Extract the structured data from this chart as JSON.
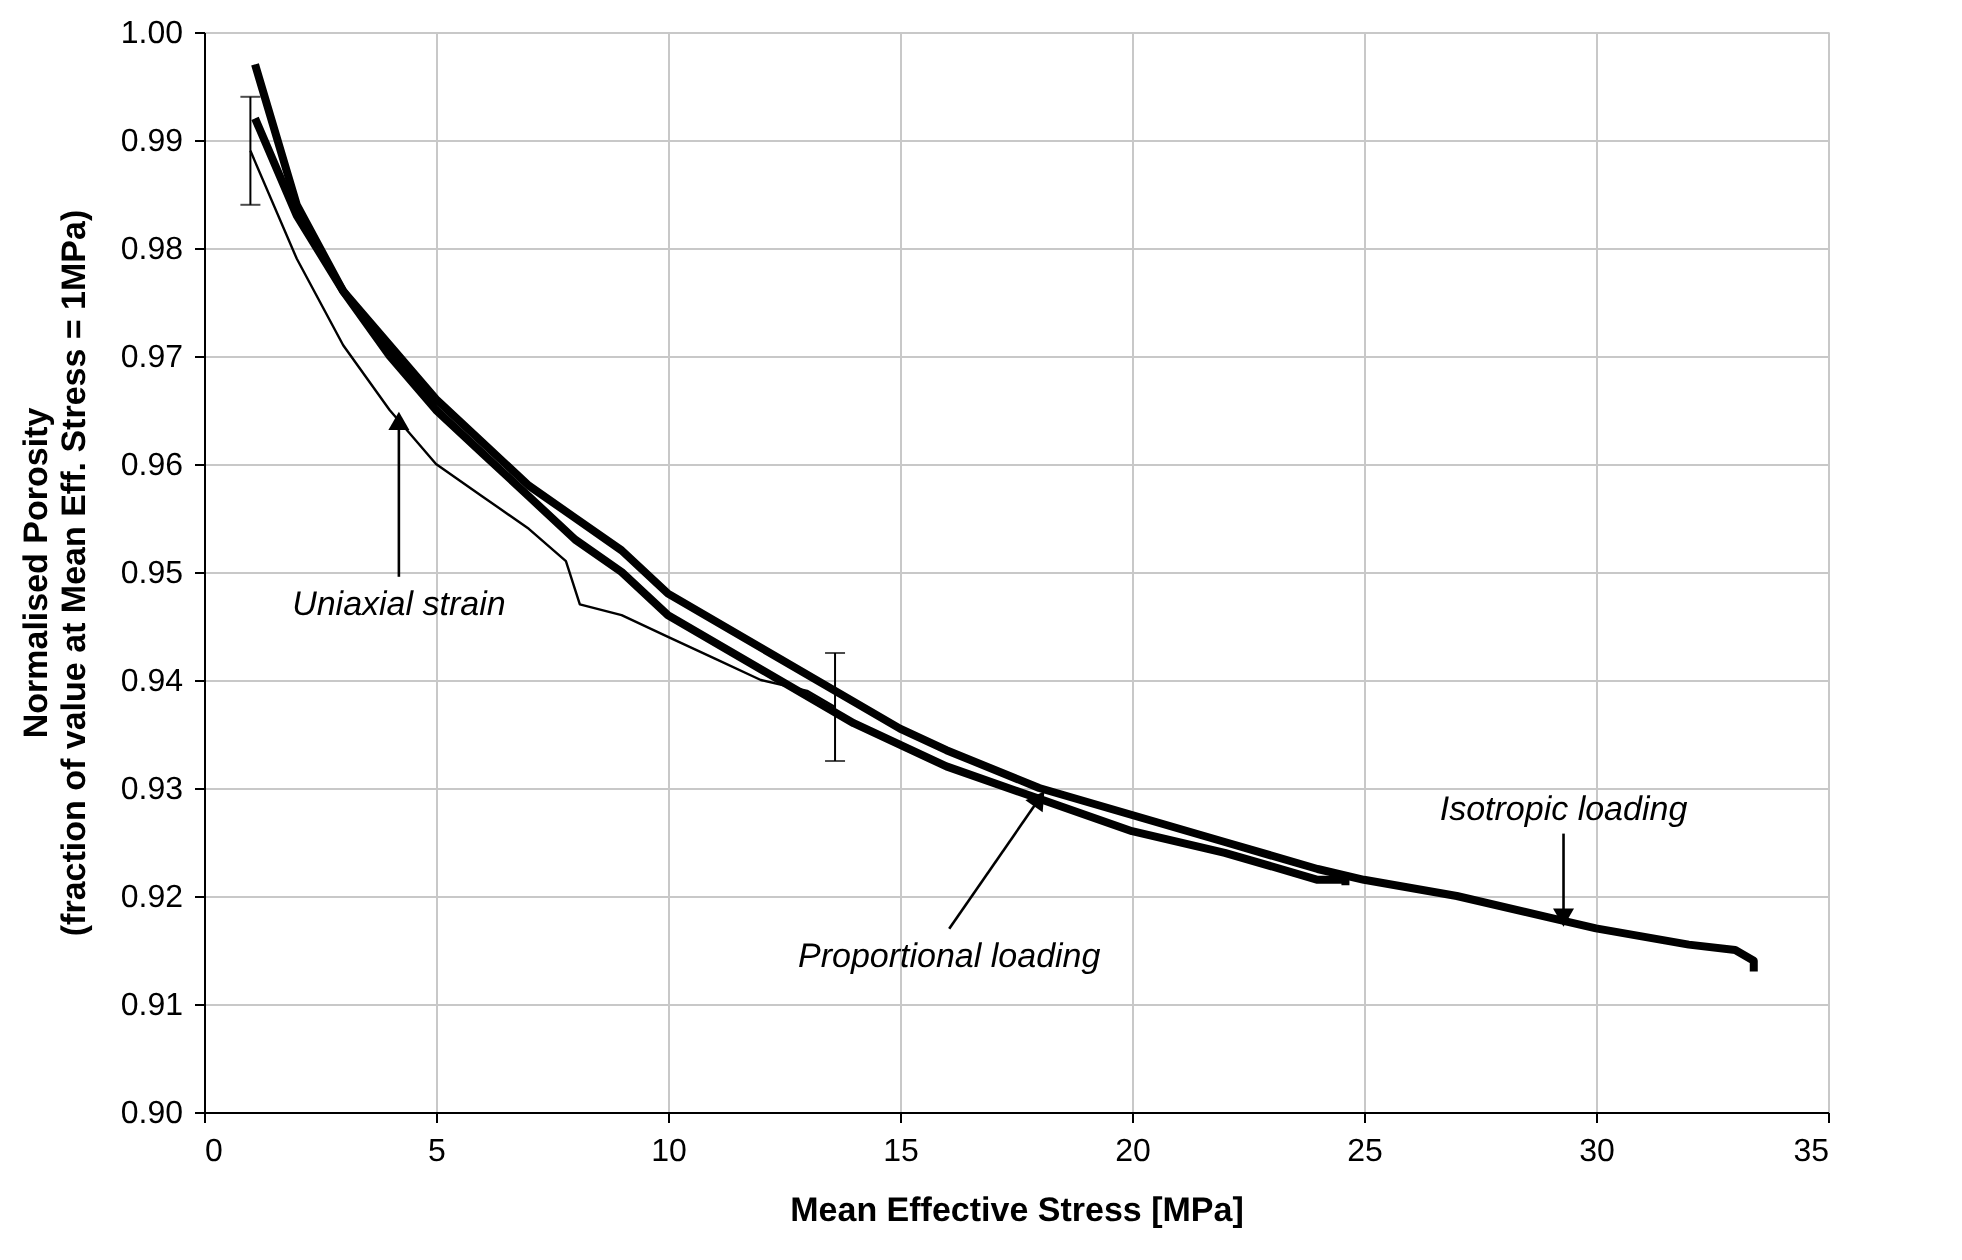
{
  "chart_data": {
    "type": "line",
    "xlabel": "Mean Effective Stress [MPa]",
    "ylabel": "Normalised Porosity\n(fraction of value at Mean Eff. Stress = 1MPa)",
    "xlim": [
      0,
      35
    ],
    "xticks": [
      0,
      5,
      10,
      15,
      20,
      25,
      30,
      35
    ],
    "ylim": [
      0.9,
      1.0
    ],
    "yticks": [
      {
        "value": 0.9,
        "label": "0.90"
      },
      0.91,
      0.92,
      0.93,
      0.94,
      0.95,
      0.96,
      0.97,
      0.98,
      0.99,
      {
        "value": 1.0,
        "label": "1.00"
      }
    ],
    "grid": true,
    "marker": "none",
    "line_style": "solid",
    "series": [
      {
        "color": "#000000",
        "x": [
          1.1,
          2,
          3,
          4,
          5,
          6,
          7,
          8,
          9,
          10,
          12,
          14,
          15,
          16,
          18,
          20,
          22,
          24,
          25,
          27,
          29,
          30,
          32,
          33,
          33.4,
          33.4
        ],
        "values": [
          0.997,
          0.984,
          0.976,
          0.971,
          0.966,
          0.962,
          0.958,
          0.955,
          0.952,
          0.948,
          0.943,
          0.938,
          0.9355,
          0.9335,
          0.93,
          0.9275,
          0.925,
          0.9225,
          0.9215,
          0.92,
          0.918,
          0.917,
          0.9155,
          0.915,
          0.914,
          0.913
        ]
      },
      {
        "color": "#000000",
        "x": [
          1.1,
          2,
          3,
          4,
          5,
          6,
          7,
          8,
          9,
          10,
          12,
          14,
          16,
          18,
          20,
          22,
          24,
          24.6,
          24.6
        ],
        "values": [
          0.992,
          0.983,
          0.976,
          0.97,
          0.965,
          0.961,
          0.957,
          0.953,
          0.95,
          0.946,
          0.941,
          0.936,
          0.932,
          0.929,
          0.926,
          0.924,
          0.9215,
          0.9215,
          0.921
        ]
      },
      {
        "color": "#000000",
        "x": [
          1.0,
          2,
          3,
          4,
          5,
          6,
          7,
          7.8,
          8.1,
          9,
          10,
          11,
          12,
          13,
          13.6
        ],
        "values": [
          0.989,
          0.979,
          0.971,
          0.965,
          0.96,
          0.957,
          0.954,
          0.951,
          0.947,
          0.946,
          0.944,
          0.942,
          0.94,
          0.939,
          0.9375
        ],
        "errors": [
          [
            0.984,
            0.994
          ],
          null,
          null,
          null,
          null,
          null,
          null,
          null,
          null,
          null,
          null,
          null,
          null,
          null,
          [
            0.9325,
            0.9425
          ]
        ]
      }
    ],
    "annotations": [
      {
        "text": "Uniaxial strain",
        "x": 4.2,
        "y": 0.964
      },
      {
        "text": "Proportional loading",
        "x": 18,
        "y": 0.929
      },
      {
        "text": "Isotropic loading",
        "x": 29.3,
        "y": 0.918
      }
    ]
  }
}
